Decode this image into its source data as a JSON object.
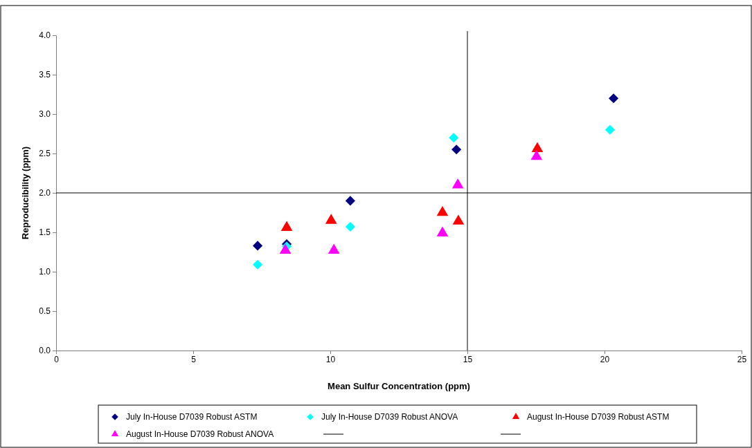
{
  "chart_data": {
    "type": "scatter",
    "xlabel": "Mean Sulfur Concentration (ppm)",
    "ylabel": "Reproducibility (ppm)",
    "xlim": [
      0,
      25
    ],
    "xticks": [
      0,
      5,
      10,
      15,
      20,
      25
    ],
    "ylim": [
      0,
      4
    ],
    "yticks": [
      {
        "value": 0,
        "label": "0.0"
      },
      {
        "value": 0.5,
        "label": "0.5"
      },
      {
        "value": 1,
        "label": "1.0"
      },
      {
        "value": 1.5,
        "label": "1.5"
      },
      {
        "value": 2,
        "label": "2.0"
      },
      {
        "value": 2.5,
        "label": "2.5"
      },
      {
        "value": 3,
        "label": "3.0"
      },
      {
        "value": 3.5,
        "label": "3.5"
      },
      {
        "value": 4,
        "label": "4.0"
      }
    ],
    "legend": "bottom",
    "grid": false,
    "series": [
      {
        "name": "July In-House D7039 Robust ASTM",
        "color": "#000080",
        "marker": "diamond",
        "x": [
          7.35,
          8.41,
          10.73,
          14.6,
          20.33
        ],
        "values": [
          1.33,
          1.35,
          1.9,
          2.55,
          3.2
        ]
      },
      {
        "name": "July In-House D7039 Robust ANOVA",
        "color": "#00ffff",
        "marker": "diamond",
        "x": [
          7.35,
          8.41,
          10.73,
          14.5,
          20.2
        ],
        "values": [
          1.09,
          1.32,
          1.57,
          2.7,
          2.8
        ]
      },
      {
        "name": "August In-House D7039 Robust ASTM",
        "color": "#ff0000",
        "marker": "triangle",
        "x": [
          8.41,
          10.03,
          14.09,
          14.67,
          17.55
        ],
        "values": [
          1.56,
          1.65,
          1.75,
          1.64,
          2.56
        ]
      },
      {
        "name": "August In-House D7039 Robust ANOVA",
        "color": "#ff00ff",
        "marker": "triangle",
        "x": [
          8.36,
          10.13,
          14.09,
          14.65,
          17.52
        ],
        "values": [
          1.27,
          1.27,
          1.49,
          2.1,
          2.46
        ]
      }
    ],
    "ref_lines": [
      {
        "axis": "x",
        "value": 15,
        "color": "#000000"
      },
      {
        "axis": "y",
        "value": 2,
        "color": "#000000"
      }
    ]
  }
}
